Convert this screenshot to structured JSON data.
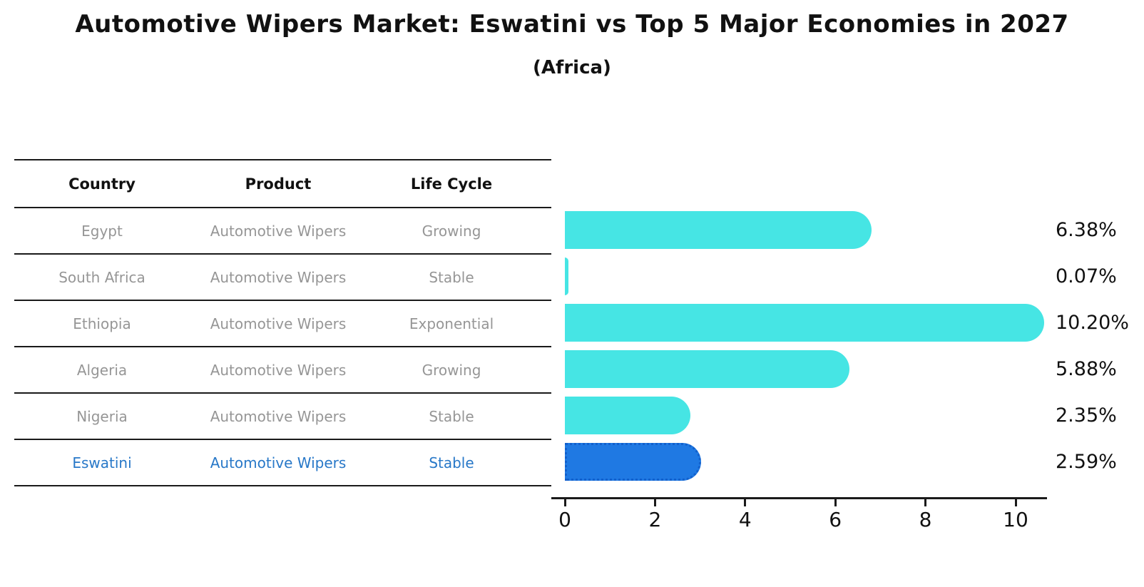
{
  "header": {
    "title": "Automotive Wipers Market: Eswatini vs Top 5 Major Economies in 2027",
    "subtitle": "(Africa)"
  },
  "colors": {
    "text": "#111111",
    "line": "#1a1a1a",
    "row_text": "#969696",
    "highlight_text": "#2878C8",
    "bar_default": "#46E5E4",
    "bar_highlight": "#1F79E3",
    "highlight_border": "#1260CC"
  },
  "table": {
    "columns": [
      "Country",
      "Product",
      "Life Cycle"
    ],
    "rows": [
      {
        "country": "Egypt",
        "product": "Automotive Wipers",
        "life_cycle": "Growing",
        "highlight": false
      },
      {
        "country": "South Africa",
        "product": "Automotive Wipers",
        "life_cycle": "Stable",
        "highlight": false
      },
      {
        "country": "Ethiopia",
        "product": "Automotive Wipers",
        "life_cycle": "Exponential",
        "highlight": false
      },
      {
        "country": "Algeria",
        "product": "Automotive Wipers",
        "life_cycle": "Growing",
        "highlight": false
      },
      {
        "country": "Nigeria",
        "product": "Automotive Wipers",
        "life_cycle": "Stable",
        "highlight": false
      },
      {
        "country": "Eswatini",
        "product": "Automotive Wipers",
        "life_cycle": "Stable",
        "highlight": true
      }
    ]
  },
  "chart_data": {
    "type": "bar",
    "orientation": "horizontal",
    "title": "Automotive Wipers Market: Eswatini vs Top 5 Major Economies in 2027",
    "subtitle": "(Africa)",
    "categories": [
      "Egypt",
      "South Africa",
      "Ethiopia",
      "Algeria",
      "Nigeria",
      "Eswatini"
    ],
    "values": [
      6.38,
      0.07,
      10.2,
      5.88,
      2.35,
      2.59
    ],
    "value_labels": [
      "6.38%",
      "0.07%",
      "10.20%",
      "5.88%",
      "2.35%",
      "2.59%"
    ],
    "highlight_index": 5,
    "x_ticks": [
      0,
      2,
      4,
      6,
      8,
      10
    ],
    "xlim": [
      -0.3,
      10.7
    ],
    "xlabel": "",
    "ylabel": "",
    "grid": false,
    "legend": "none"
  }
}
